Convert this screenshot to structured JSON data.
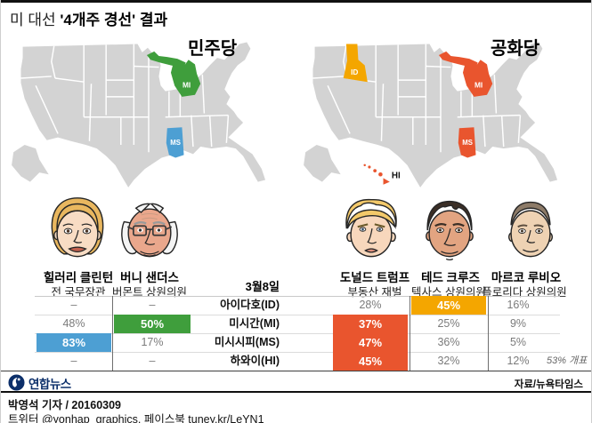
{
  "title": {
    "prefix": "미 대선 ",
    "emphasis": "'4개주 경선' 결과"
  },
  "maps": {
    "democratic": {
      "label": "민주당",
      "states": {
        "mi": "MI",
        "ms": "MS"
      }
    },
    "republican": {
      "label": "공화당",
      "states": {
        "id": "ID",
        "mi": "MI",
        "ms": "MS",
        "hi": "HI"
      }
    }
  },
  "candidates": [
    {
      "name": "힐러리 클린턴",
      "title": "전 국무장관"
    },
    {
      "name": "버니 샌더스",
      "title": "버몬트 상원의원"
    },
    {
      "name": "도널드 트럼프",
      "title": "부동산 재벌"
    },
    {
      "name": "테드 크루즈",
      "title": "텍사스 상원의원"
    },
    {
      "name": "마르코 루비오",
      "title": "플로리다 상원의원"
    }
  ],
  "table": {
    "date_header": "3월8일",
    "rows": [
      {
        "state": "아이다호(ID)",
        "clinton": "–",
        "sanders": "–",
        "trump": "28%",
        "cruz": "45%",
        "rubio": "16%",
        "note": ""
      },
      {
        "state": "미시간(MI)",
        "clinton": "48%",
        "sanders": "50%",
        "trump": "37%",
        "cruz": "25%",
        "rubio": "9%",
        "note": ""
      },
      {
        "state": "미시시피(MS)",
        "clinton": "83%",
        "sanders": "17%",
        "trump": "47%",
        "cruz": "36%",
        "rubio": "5%",
        "note": ""
      },
      {
        "state": "하와이(HI)",
        "clinton": "–",
        "sanders": "–",
        "trump": "45%",
        "cruz": "32%",
        "rubio": "12%",
        "note": "53% 개표"
      }
    ]
  },
  "chart_data": {
    "type": "table",
    "title": "미 대선 '4개주 경선' 결과",
    "date": "3월8일",
    "columns": [
      "힐러리 클린턴",
      "버니 샌더스",
      "도널드 트럼프",
      "테드 크루즈",
      "마르코 루비오"
    ],
    "rows": [
      {
        "state": "아이다호(ID)",
        "values": [
          null,
          null,
          28,
          45,
          16
        ],
        "winner_highlight": [
          "테드 크루즈"
        ]
      },
      {
        "state": "미시간(MI)",
        "values": [
          48,
          50,
          37,
          25,
          9
        ],
        "winner_highlight": [
          "버니 샌더스",
          "도널드 트럼프"
        ]
      },
      {
        "state": "미시시피(MS)",
        "values": [
          83,
          17,
          47,
          36,
          5
        ],
        "winner_highlight": [
          "힐러리 클린턴",
          "도널드 트럼프"
        ]
      },
      {
        "state": "하와이(HI)",
        "values": [
          null,
          null,
          45,
          32,
          12
        ],
        "winner_highlight": [
          "도널드 트럼프"
        ],
        "note": "53% 개표"
      }
    ],
    "map_highlights": {
      "민주당": {
        "MI": "버니 샌더스(green)",
        "MS": "힐러리 클린턴(blue)"
      },
      "공화당": {
        "ID": "테드 크루즈(orange)",
        "MI": "도널드 트럼프(red)",
        "MS": "도널드 트럼프(red)",
        "HI": "도널드 트럼프(red)"
      }
    }
  },
  "footer": {
    "logo_text": "연합뉴스",
    "source": "자료/뉴욕타임스",
    "byline": "박영석 기자 / 20160309",
    "social": "트위터 @yonhap_graphics, 페이스북 tuney.kr/LeYN1"
  },
  "colors": {
    "green": "#3f9e3c",
    "blue": "#4d9fd3",
    "red": "#e9552e",
    "orange": "#f4a600",
    "map_gray": "#d3d3d3",
    "navy": "#0c2f6a"
  }
}
